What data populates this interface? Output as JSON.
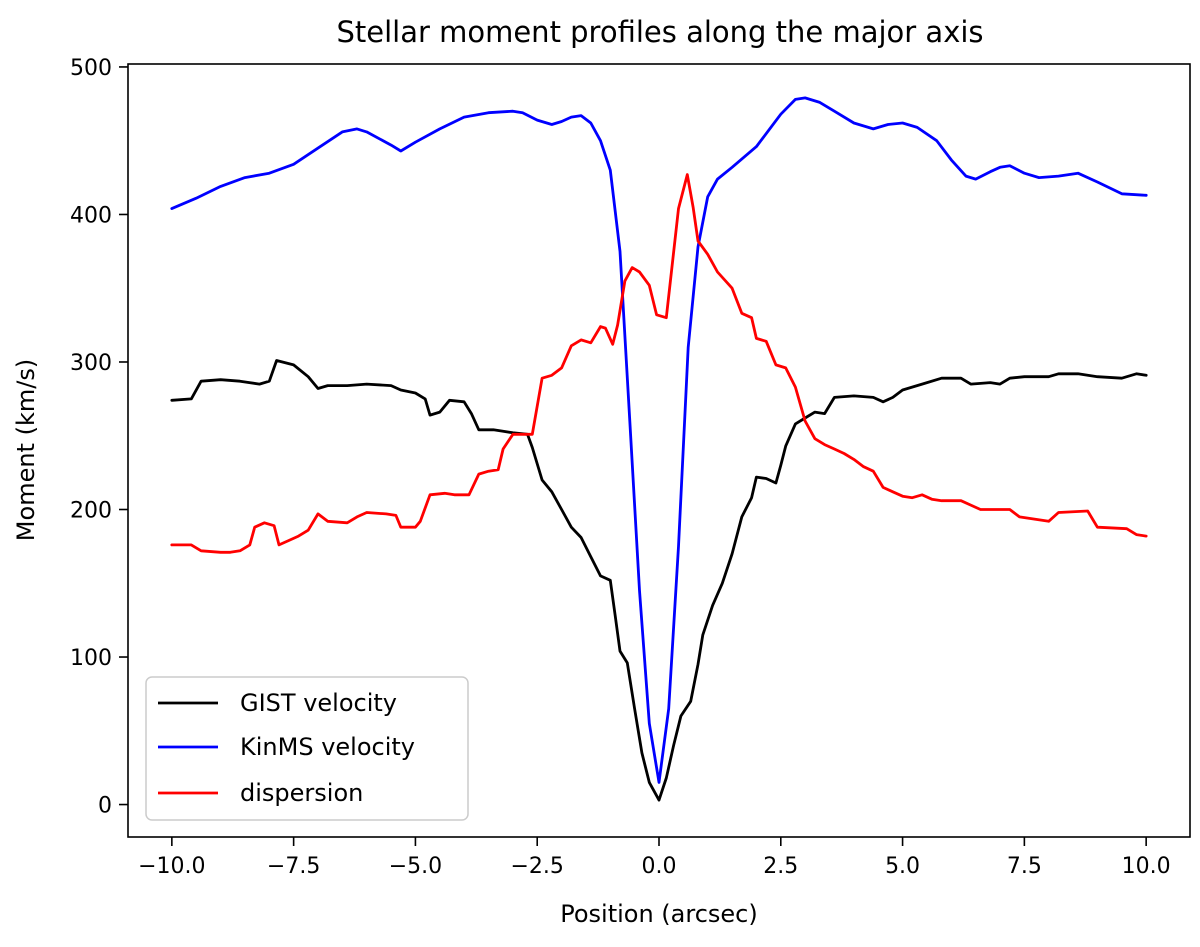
{
  "chart_data": {
    "type": "line",
    "title": "Stellar moment profiles along the major axis",
    "xlabel": "Position (arcsec)",
    "ylabel": "Moment (km/s)",
    "xlim": [
      -10.9,
      10.9
    ],
    "ylim": [
      -22,
      502
    ],
    "xticks": [
      -10.0,
      -7.5,
      -5.0,
      -2.5,
      0.0,
      2.5,
      5.0,
      7.5,
      10.0
    ],
    "xtick_labels": [
      "−10.0",
      "−7.5",
      "−5.0",
      "−2.5",
      "0.0",
      "2.5",
      "5.0",
      "7.5",
      "10.0"
    ],
    "yticks": [
      0,
      100,
      200,
      300,
      400,
      500
    ],
    "ytick_labels": [
      "0",
      "100",
      "200",
      "300",
      "400",
      "500"
    ],
    "grid": false,
    "legend_position": "lower-left",
    "series": [
      {
        "name": "GIST velocity",
        "color": "#000000",
        "points": [
          [
            -10.0,
            274
          ],
          [
            -9.6,
            275
          ],
          [
            -9.4,
            287
          ],
          [
            -9.0,
            288
          ],
          [
            -8.6,
            287
          ],
          [
            -8.2,
            285
          ],
          [
            -8.0,
            287
          ],
          [
            -7.85,
            301
          ],
          [
            -7.5,
            298
          ],
          [
            -7.2,
            290
          ],
          [
            -7.0,
            282
          ],
          [
            -6.8,
            284
          ],
          [
            -6.4,
            284
          ],
          [
            -6.0,
            285
          ],
          [
            -5.5,
            284
          ],
          [
            -5.3,
            281
          ],
          [
            -5.0,
            279
          ],
          [
            -4.8,
            275
          ],
          [
            -4.7,
            264
          ],
          [
            -4.5,
            266
          ],
          [
            -4.3,
            274
          ],
          [
            -4.0,
            273
          ],
          [
            -3.85,
            265
          ],
          [
            -3.7,
            254
          ],
          [
            -3.4,
            254
          ],
          [
            -3.2,
            253
          ],
          [
            -3.0,
            252
          ],
          [
            -2.7,
            251
          ],
          [
            -2.6,
            242
          ],
          [
            -2.4,
            220
          ],
          [
            -2.2,
            212
          ],
          [
            -2.0,
            200
          ],
          [
            -1.8,
            188
          ],
          [
            -1.6,
            181
          ],
          [
            -1.4,
            168
          ],
          [
            -1.2,
            155
          ],
          [
            -1.0,
            152
          ],
          [
            -0.9,
            128
          ],
          [
            -0.8,
            104
          ],
          [
            -0.65,
            96
          ],
          [
            -0.5,
            65
          ],
          [
            -0.35,
            35
          ],
          [
            -0.2,
            15
          ],
          [
            0.0,
            3
          ],
          [
            0.15,
            18
          ],
          [
            0.3,
            40
          ],
          [
            0.45,
            60
          ],
          [
            0.65,
            70
          ],
          [
            0.8,
            95
          ],
          [
            0.9,
            115
          ],
          [
            1.1,
            135
          ],
          [
            1.3,
            150
          ],
          [
            1.5,
            170
          ],
          [
            1.7,
            195
          ],
          [
            1.9,
            208
          ],
          [
            2.0,
            222
          ],
          [
            2.2,
            221
          ],
          [
            2.4,
            218
          ],
          [
            2.5,
            230
          ],
          [
            2.6,
            243
          ],
          [
            2.8,
            258
          ],
          [
            3.0,
            262
          ],
          [
            3.2,
            266
          ],
          [
            3.4,
            265
          ],
          [
            3.6,
            276
          ],
          [
            4.0,
            277
          ],
          [
            4.4,
            276
          ],
          [
            4.6,
            273
          ],
          [
            4.8,
            276
          ],
          [
            5.0,
            281
          ],
          [
            5.4,
            285
          ],
          [
            5.8,
            289
          ],
          [
            6.2,
            289
          ],
          [
            6.4,
            285
          ],
          [
            6.8,
            286
          ],
          [
            7.0,
            285
          ],
          [
            7.2,
            289
          ],
          [
            7.5,
            290
          ],
          [
            8.0,
            290
          ],
          [
            8.2,
            292
          ],
          [
            8.6,
            292
          ],
          [
            9.0,
            290
          ],
          [
            9.5,
            289
          ],
          [
            9.8,
            292
          ],
          [
            10.0,
            291
          ]
        ]
      },
      {
        "name": "KinMS velocity",
        "color": "#0000ff",
        "points": [
          [
            -10.0,
            404
          ],
          [
            -9.5,
            411
          ],
          [
            -9.0,
            419
          ],
          [
            -8.5,
            425
          ],
          [
            -8.0,
            428
          ],
          [
            -7.5,
            434
          ],
          [
            -7.0,
            445
          ],
          [
            -6.5,
            456
          ],
          [
            -6.2,
            458
          ],
          [
            -6.0,
            456
          ],
          [
            -5.5,
            447
          ],
          [
            -5.3,
            443
          ],
          [
            -5.0,
            449
          ],
          [
            -4.5,
            458
          ],
          [
            -4.0,
            466
          ],
          [
            -3.5,
            469
          ],
          [
            -3.0,
            470
          ],
          [
            -2.8,
            469
          ],
          [
            -2.5,
            464
          ],
          [
            -2.2,
            461
          ],
          [
            -2.0,
            463
          ],
          [
            -1.8,
            466
          ],
          [
            -1.6,
            467
          ],
          [
            -1.4,
            462
          ],
          [
            -1.2,
            450
          ],
          [
            -1.0,
            430
          ],
          [
            -0.8,
            375
          ],
          [
            -0.6,
            260
          ],
          [
            -0.4,
            145
          ],
          [
            -0.2,
            55
          ],
          [
            0.0,
            15
          ],
          [
            0.2,
            65
          ],
          [
            0.4,
            175
          ],
          [
            0.6,
            310
          ],
          [
            0.8,
            378
          ],
          [
            1.0,
            412
          ],
          [
            1.2,
            424
          ],
          [
            1.5,
            432
          ],
          [
            2.0,
            446
          ],
          [
            2.5,
            468
          ],
          [
            2.8,
            478
          ],
          [
            3.0,
            479
          ],
          [
            3.3,
            476
          ],
          [
            3.6,
            470
          ],
          [
            4.0,
            462
          ],
          [
            4.4,
            458
          ],
          [
            4.7,
            461
          ],
          [
            5.0,
            462
          ],
          [
            5.3,
            459
          ],
          [
            5.7,
            450
          ],
          [
            6.0,
            437
          ],
          [
            6.3,
            426
          ],
          [
            6.5,
            424
          ],
          [
            6.8,
            429
          ],
          [
            7.0,
            432
          ],
          [
            7.2,
            433
          ],
          [
            7.5,
            428
          ],
          [
            7.8,
            425
          ],
          [
            8.2,
            426
          ],
          [
            8.6,
            428
          ],
          [
            9.0,
            422
          ],
          [
            9.5,
            414
          ],
          [
            10.0,
            413
          ]
        ]
      },
      {
        "name": "dispersion",
        "color": "#ff0000",
        "points": [
          [
            -10.0,
            176
          ],
          [
            -9.6,
            176
          ],
          [
            -9.4,
            172
          ],
          [
            -9.0,
            171
          ],
          [
            -8.8,
            171
          ],
          [
            -8.6,
            172
          ],
          [
            -8.4,
            176
          ],
          [
            -8.3,
            188
          ],
          [
            -8.1,
            191
          ],
          [
            -7.9,
            189
          ],
          [
            -7.8,
            176
          ],
          [
            -7.6,
            179
          ],
          [
            -7.4,
            182
          ],
          [
            -7.2,
            186
          ],
          [
            -7.0,
            197
          ],
          [
            -6.8,
            192
          ],
          [
            -6.4,
            191
          ],
          [
            -6.2,
            195
          ],
          [
            -6.0,
            198
          ],
          [
            -5.6,
            197
          ],
          [
            -5.4,
            196
          ],
          [
            -5.3,
            188
          ],
          [
            -5.0,
            188
          ],
          [
            -4.9,
            192
          ],
          [
            -4.7,
            210
          ],
          [
            -4.4,
            211
          ],
          [
            -4.2,
            210
          ],
          [
            -3.9,
            210
          ],
          [
            -3.7,
            224
          ],
          [
            -3.5,
            226
          ],
          [
            -3.3,
            227
          ],
          [
            -3.2,
            241
          ],
          [
            -3.0,
            251
          ],
          [
            -2.8,
            251
          ],
          [
            -2.6,
            251
          ],
          [
            -2.4,
            289
          ],
          [
            -2.2,
            291
          ],
          [
            -2.0,
            296
          ],
          [
            -1.8,
            311
          ],
          [
            -1.6,
            315
          ],
          [
            -1.4,
            313
          ],
          [
            -1.2,
            324
          ],
          [
            -1.1,
            323
          ],
          [
            -0.95,
            312
          ],
          [
            -0.85,
            325
          ],
          [
            -0.7,
            355
          ],
          [
            -0.55,
            364
          ],
          [
            -0.4,
            361
          ],
          [
            -0.2,
            352
          ],
          [
            -0.05,
            332
          ],
          [
            0.15,
            330
          ],
          [
            0.4,
            404
          ],
          [
            0.58,
            427
          ],
          [
            0.7,
            405
          ],
          [
            0.8,
            382
          ],
          [
            1.0,
            373
          ],
          [
            1.2,
            361
          ],
          [
            1.5,
            350
          ],
          [
            1.7,
            333
          ],
          [
            1.9,
            330
          ],
          [
            2.0,
            316
          ],
          [
            2.2,
            314
          ],
          [
            2.4,
            298
          ],
          [
            2.6,
            296
          ],
          [
            2.8,
            283
          ],
          [
            3.0,
            260
          ],
          [
            3.2,
            248
          ],
          [
            3.4,
            244
          ],
          [
            3.6,
            241
          ],
          [
            3.8,
            238
          ],
          [
            4.0,
            234
          ],
          [
            4.2,
            229
          ],
          [
            4.4,
            226
          ],
          [
            4.6,
            215
          ],
          [
            4.8,
            212
          ],
          [
            5.0,
            209
          ],
          [
            5.2,
            208
          ],
          [
            5.4,
            210
          ],
          [
            5.6,
            207
          ],
          [
            5.8,
            206
          ],
          [
            6.2,
            206
          ],
          [
            6.4,
            203
          ],
          [
            6.6,
            200
          ],
          [
            7.2,
            200
          ],
          [
            7.4,
            195
          ],
          [
            8.0,
            192
          ],
          [
            8.2,
            198
          ],
          [
            8.8,
            199
          ],
          [
            9.0,
            188
          ],
          [
            9.6,
            187
          ],
          [
            9.8,
            183
          ],
          [
            10.0,
            182
          ]
        ]
      }
    ]
  }
}
